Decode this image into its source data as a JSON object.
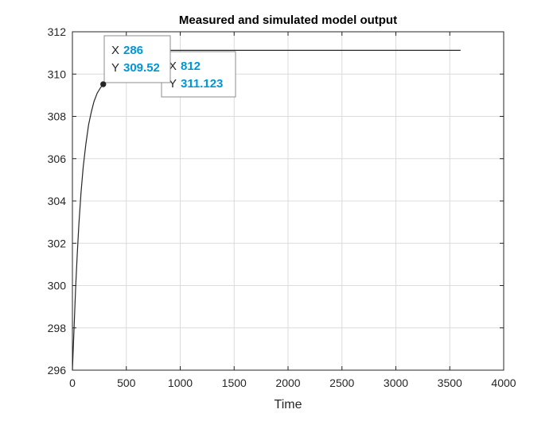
{
  "chart_data": {
    "type": "line",
    "title": "Measured and simulated model output",
    "xlabel": "Time",
    "ylabel": "",
    "xlim": [
      0,
      4000
    ],
    "ylim": [
      296,
      312
    ],
    "xticks": [
      0,
      500,
      1000,
      1500,
      2000,
      2500,
      3000,
      3500,
      4000
    ],
    "yticks": [
      296,
      298,
      300,
      302,
      304,
      306,
      308,
      310,
      312
    ],
    "grid": true,
    "series": [
      {
        "color": "#262626",
        "x": [
          0,
          10,
          20,
          30,
          45,
          60,
          80,
          100,
          125,
          150,
          175,
          200,
          230,
          260,
          286,
          320,
          360,
          400,
          450,
          500,
          600,
          700,
          812,
          1000,
          1500,
          2000,
          2500,
          3000,
          3600
        ],
        "y": [
          296.0,
          297.3,
          298.6,
          299.9,
          301.5,
          302.9,
          304.4,
          305.6,
          306.7,
          307.6,
          308.2,
          308.7,
          309.1,
          309.35,
          309.52,
          309.9,
          310.25,
          310.5,
          310.72,
          310.87,
          311.02,
          311.09,
          311.123,
          311.123,
          311.123,
          311.123,
          311.123,
          311.123,
          311.123
        ]
      }
    ],
    "datatips": [
      {
        "x": 286,
        "y": 309.52,
        "x_label": "X",
        "y_label": "Y",
        "x_text": "286",
        "y_text": "309.52",
        "marker": true
      },
      {
        "x": 812,
        "y": 311.123,
        "x_label": "X",
        "y_label": "Y",
        "x_text": "812",
        "y_text": "311.123",
        "marker": false
      }
    ]
  }
}
